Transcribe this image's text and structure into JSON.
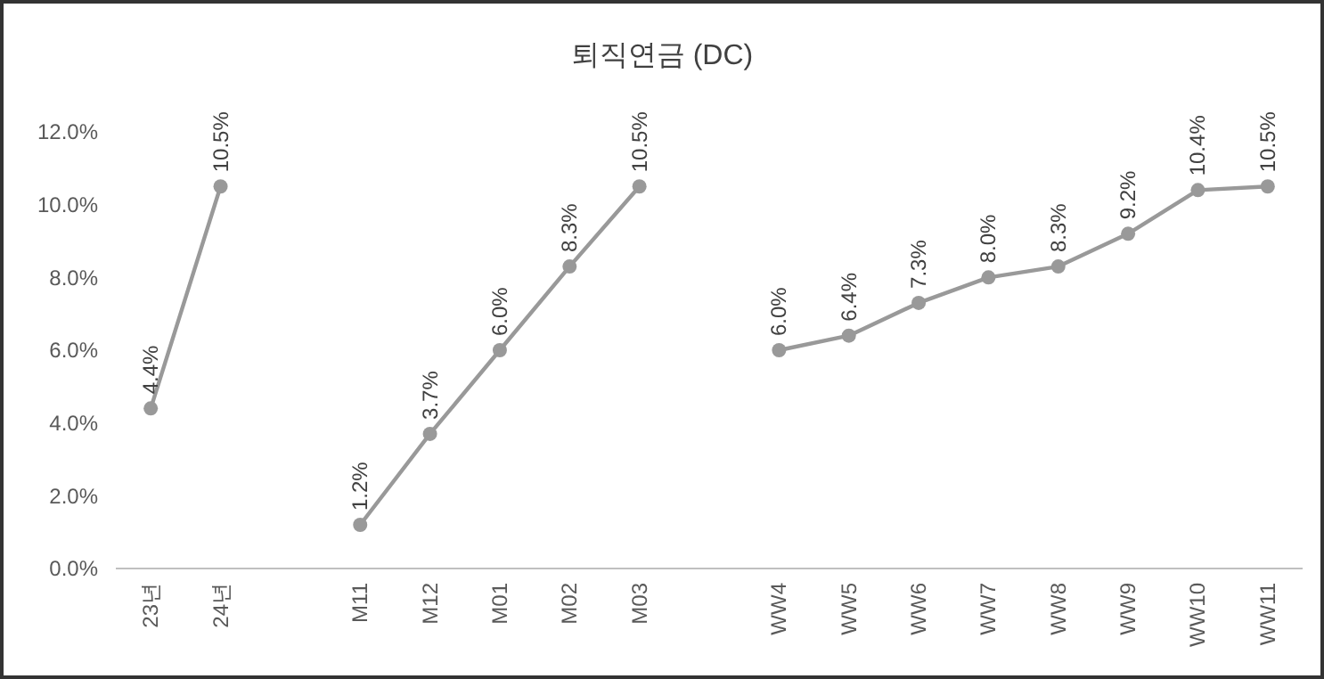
{
  "chart_data": {
    "type": "line",
    "title": "퇴직연금 (DC)",
    "categories": [
      "23년",
      "24년",
      null,
      "M11",
      "M12",
      "M01",
      "M02",
      "M03",
      null,
      "WW4",
      "WW5",
      "WW6",
      "WW7",
      "WW8",
      "WW9",
      "WW10",
      "WW11"
    ],
    "series": [
      {
        "color": "#999999",
        "values": [
          4.4,
          10.5,
          null,
          1.2,
          3.7,
          6.0,
          8.3,
          10.5,
          null,
          6.0,
          6.4,
          7.3,
          8.0,
          8.3,
          9.2,
          10.4,
          10.5
        ],
        "value_labels": [
          "4.4%",
          "10.5%",
          null,
          "1.2%",
          "3.7%",
          "6.0%",
          "8.3%",
          "10.5%",
          null,
          "6.0%",
          "6.4%",
          "7.3%",
          "8.0%",
          "8.3%",
          "9.2%",
          "10.4%",
          "10.5%"
        ]
      }
    ],
    "ylim": [
      0,
      12
    ],
    "yticks": [
      {
        "value": 0,
        "label": "0.0%"
      },
      {
        "value": 2,
        "label": "2.0%"
      },
      {
        "value": 4,
        "label": "4.0%"
      },
      {
        "value": 6,
        "label": "6.0%"
      },
      {
        "value": 8,
        "label": "8.0%"
      },
      {
        "value": 10,
        "label": "10.0%"
      },
      {
        "value": 12,
        "label": "12.0%"
      }
    ],
    "marker": "circle",
    "grid": false
  }
}
